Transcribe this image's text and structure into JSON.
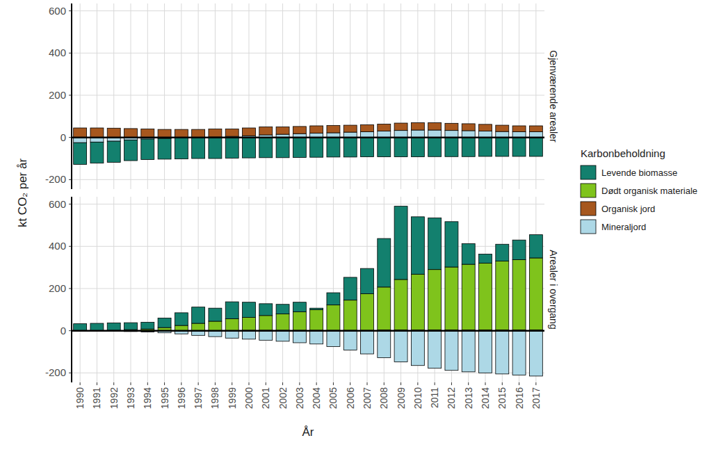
{
  "chart_data": {
    "type": "bar",
    "stacked": true,
    "grid": true,
    "legend": "right",
    "ylabel": "kt CO₂ per år",
    "xlabel": "År",
    "legend_title": "Karbonbeholdning",
    "categories": [
      "1990",
      "1991",
      "1992",
      "1993",
      "1994",
      "1995",
      "1996",
      "1997",
      "1998",
      "1999",
      "2000",
      "2001",
      "2002",
      "2003",
      "2004",
      "2005",
      "2006",
      "2007",
      "2008",
      "2009",
      "2010",
      "2011",
      "2012",
      "2013",
      "2014",
      "2015",
      "2016",
      "2017"
    ],
    "panels": [
      {
        "title": "Gjenværende arealer"
      },
      {
        "title": "Arealer i overgang"
      }
    ],
    "series": [
      {
        "name": "Levende biomasse",
        "color": "#13806e",
        "values": [
          [
            -103,
            -100,
            -100,
            -98,
            -97,
            -98,
            -99,
            -99,
            -100,
            -98,
            -97,
            -96,
            -96,
            -95,
            -94,
            -93,
            -93,
            -92,
            -92,
            -92,
            -92,
            -91,
            -91,
            -91,
            -90,
            -90,
            -90,
            -90
          ],
          [
            33,
            35,
            35,
            33,
            32,
            45,
            60,
            77,
            62,
            80,
            72,
            56,
            45,
            45,
            7,
            58,
            108,
            120,
            230,
            347,
            272,
            245,
            215,
            98,
            43,
            80,
            93,
            110
          ]
        ]
      },
      {
        "name": "Dødt organisk materiale",
        "color": "#7fc31c",
        "values": [
          [
            0,
            0,
            0,
            0,
            0,
            0,
            0,
            0,
            0,
            0,
            0,
            0,
            0,
            0,
            0,
            0,
            0,
            0,
            0,
            0,
            0,
            0,
            0,
            0,
            0,
            0,
            0,
            0
          ],
          [
            0,
            0,
            2,
            5,
            8,
            15,
            25,
            35,
            45,
            57,
            61,
            70,
            78,
            88,
            98,
            120,
            143,
            173,
            203,
            239,
            264,
            286,
            298,
            311,
            316,
            326,
            333,
            341
          ]
        ]
      },
      {
        "name": "Organisk jord",
        "color": "#a6571e",
        "values": [
          [
            45,
            45,
            44,
            42,
            40,
            38,
            38,
            38,
            38,
            35,
            37,
            38,
            35,
            34,
            35,
            35,
            33,
            33,
            33,
            35,
            35,
            35,
            34,
            33,
            32,
            30,
            28,
            28
          ],
          [
            0,
            0,
            0,
            0,
            0,
            0,
            0,
            0,
            0,
            0,
            2,
            2,
            2,
            2,
            2,
            2,
            2,
            2,
            4,
            4,
            4,
            4,
            4,
            4,
            4,
            4,
            4,
            4
          ]
        ]
      },
      {
        "name": "Mineraljord",
        "color": "#add8e6",
        "values": [
          [
            -25,
            -22,
            -18,
            -12,
            -8,
            -5,
            -3,
            -1,
            2,
            5,
            8,
            12,
            15,
            18,
            20,
            22,
            25,
            27,
            30,
            33,
            35,
            35,
            33,
            32,
            30,
            28,
            27,
            27
          ],
          [
            0,
            -1,
            -2,
            -4,
            -6,
            -10,
            -15,
            -22,
            -28,
            -35,
            -40,
            -45,
            -50,
            -57,
            -63,
            -75,
            -92,
            -110,
            -128,
            -148,
            -165,
            -178,
            -188,
            -195,
            -200,
            -205,
            -210,
            -215
          ]
        ]
      }
    ],
    "ylim": [
      -245,
      635
    ],
    "yticks": [
      -200,
      0,
      200,
      400,
      600
    ]
  }
}
